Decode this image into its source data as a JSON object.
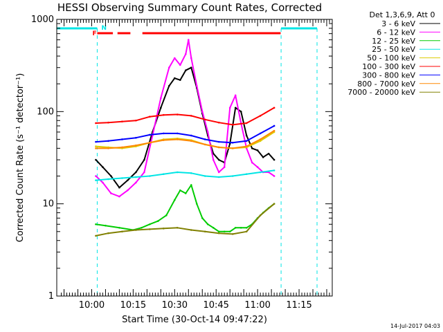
{
  "chart_data": {
    "type": "line",
    "title": "HESSI Observing Summary Count Rates, Corrected",
    "subtitle": "Det 1,3,6,9, Att 0",
    "xlabel": "Start Time (30-Oct-14 09:47:22)",
    "ylabel": "Corrected Count Rate (s⁻¹ detector⁻¹)",
    "yscale": "log",
    "ylim": [
      1,
      1000
    ],
    "xlim": [
      "09:47:22",
      "11:27:00"
    ],
    "x_ticks": [
      "10:00",
      "10:15",
      "10:30",
      "10:45",
      "11:00",
      "11:15"
    ],
    "y_ticks": [
      "1",
      "10",
      "100",
      "1000"
    ],
    "legend_position": "right",
    "footer_date": "14-Jul-2017 04:03",
    "flags": {
      "n_label": "N",
      "f_label": "F",
      "n_color": "#00e5e5",
      "f_color": "#ff0000",
      "n_segments": [
        [
          "09:47:30",
          "10:02:00"
        ],
        [
          "11:08:30",
          "11:21:30"
        ]
      ],
      "n_dashed_times": [
        "10:02:00",
        "11:08:30",
        "11:21:30"
      ],
      "f_segments": [
        [
          "10:02:00",
          "10:07:40"
        ],
        [
          "10:09:20",
          "10:14:00"
        ],
        [
          "10:18:20",
          "11:08:20"
        ]
      ]
    },
    "series": [
      {
        "name": "3 - 6 keV",
        "color": "#000000",
        "x": [
          "10:01:30",
          "10:04",
          "10:07",
          "10:10",
          "10:13",
          "10:16",
          "10:19",
          "10:22",
          "10:25",
          "10:28",
          "10:30",
          "10:32",
          "10:34",
          "10:36",
          "10:38",
          "10:40",
          "10:42",
          "10:44",
          "10:46",
          "10:48",
          "10:50",
          "10:52",
          "10:54",
          "10:56",
          "10:58",
          "11:00",
          "11:02",
          "11:04",
          "11:06"
        ],
        "values": [
          30,
          25,
          20,
          15,
          18,
          22,
          30,
          60,
          110,
          190,
          230,
          220,
          280,
          300,
          180,
          95,
          55,
          35,
          30,
          28,
          45,
          110,
          100,
          55,
          40,
          38,
          32,
          35,
          30
        ]
      },
      {
        "name": "6 - 12 keV",
        "color": "#ff00ff",
        "x": [
          "10:01:30",
          "10:04",
          "10:07",
          "10:10",
          "10:13",
          "10:16",
          "10:19",
          "10:22",
          "10:25",
          "10:28",
          "10:30",
          "10:32",
          "10:34",
          "10:35",
          "10:36",
          "10:38",
          "10:40",
          "10:42",
          "10:44",
          "10:46",
          "10:48",
          "10:50",
          "10:52",
          "10:54",
          "10:56",
          "10:58",
          "11:00",
          "11:02",
          "11:04",
          "11:06"
        ],
        "values": [
          20,
          17,
          13,
          12,
          14,
          17,
          22,
          55,
          140,
          300,
          380,
          320,
          420,
          600,
          380,
          190,
          100,
          60,
          30,
          22,
          25,
          110,
          150,
          75,
          40,
          28,
          25,
          22,
          22,
          20
        ]
      },
      {
        "name": "12 - 25 keV",
        "color": "#00cc00",
        "x": [
          "10:01:30",
          "10:05",
          "10:10",
          "10:15",
          "10:18",
          "10:21",
          "10:24",
          "10:27",
          "10:30",
          "10:32",
          "10:34",
          "10:36",
          "10:38",
          "10:40",
          "10:42",
          "10:44",
          "10:46",
          "10:48",
          "10:50",
          "10:52",
          "10:54",
          "10:56",
          "10:58",
          "11:00",
          "11:02",
          "11:04",
          "11:06"
        ],
        "values": [
          6,
          5.8,
          5.5,
          5.2,
          5.5,
          6,
          6.5,
          7.5,
          11,
          14,
          13,
          16,
          10,
          7,
          6,
          5.5,
          5,
          5,
          5,
          5.5,
          5.5,
          5.5,
          6,
          7,
          8,
          9,
          10
        ]
      },
      {
        "name": "25 - 50 keV",
        "color": "#00e5e5",
        "x": [
          "10:01:30",
          "10:06",
          "10:11",
          "10:16",
          "10:21",
          "10:26",
          "10:31",
          "10:36",
          "10:41",
          "10:46",
          "10:51",
          "10:56",
          "11:01",
          "11:06"
        ],
        "values": [
          18,
          18.5,
          19,
          19.5,
          20,
          21,
          22,
          21.5,
          20,
          19.5,
          20,
          21,
          22,
          23
        ]
      },
      {
        "name": "50 - 100 keV",
        "color": "#ddcc00",
        "x": [
          "10:01:30",
          "10:06",
          "10:11",
          "10:16",
          "10:21",
          "10:26",
          "10:31",
          "10:36",
          "10:41",
          "10:46",
          "10:51",
          "10:56",
          "11:01",
          "11:06"
        ],
        "values": [
          42,
          41,
          40,
          42,
          46,
          50,
          51,
          49,
          44,
          41,
          40,
          41,
          48,
          60
        ]
      },
      {
        "name": "100 - 300 keV",
        "color": "#ff0000",
        "x": [
          "10:01:30",
          "10:06",
          "10:11",
          "10:16",
          "10:21",
          "10:26",
          "10:31",
          "10:36",
          "10:41",
          "10:46",
          "10:51",
          "10:56",
          "11:01",
          "11:06"
        ],
        "values": [
          75,
          76,
          78,
          80,
          88,
          92,
          93,
          90,
          82,
          76,
          72,
          75,
          90,
          110
        ]
      },
      {
        "name": "300 - 800 keV",
        "color": "#0000ff",
        "x": [
          "10:01:30",
          "10:06",
          "10:11",
          "10:16",
          "10:21",
          "10:26",
          "10:31",
          "10:36",
          "10:41",
          "10:46",
          "10:51",
          "10:56",
          "11:01",
          "11:06"
        ],
        "values": [
          47,
          48,
          50,
          52,
          56,
          58,
          58,
          55,
          50,
          47,
          46,
          48,
          58,
          70
        ]
      },
      {
        "name": "800 - 7000 keV",
        "color": "#ff8800",
        "x": [
          "10:01:30",
          "10:06",
          "10:11",
          "10:16",
          "10:21",
          "10:26",
          "10:31",
          "10:36",
          "10:41",
          "10:46",
          "10:51",
          "10:56",
          "11:01",
          "11:06"
        ],
        "values": [
          40,
          40,
          41,
          43,
          46,
          49,
          50,
          48,
          44,
          41,
          40,
          42,
          50,
          62
        ]
      },
      {
        "name": "7000 - 20000 keV",
        "color": "#808000",
        "x": [
          "10:01:30",
          "10:06",
          "10:11",
          "10:16",
          "10:21",
          "10:26",
          "10:31",
          "10:36",
          "10:41",
          "10:46",
          "10:51",
          "10:56",
          "11:01",
          "11:06"
        ],
        "values": [
          4.5,
          4.8,
          5.0,
          5.2,
          5.3,
          5.4,
          5.5,
          5.2,
          5.0,
          4.8,
          4.7,
          5.0,
          7.5,
          10
        ]
      }
    ]
  }
}
